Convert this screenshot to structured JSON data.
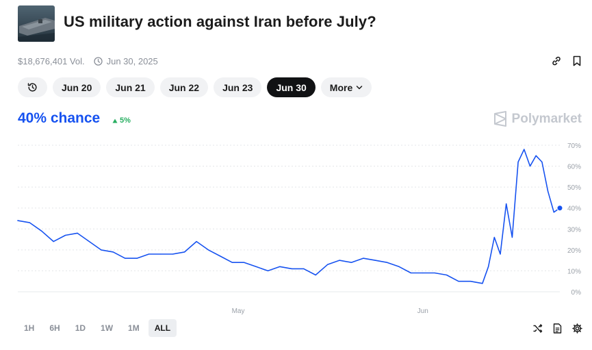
{
  "market": {
    "title": "US military action against Iran before July?",
    "volume": "$18,676,401 Vol.",
    "end_date": "Jun 30, 2025",
    "thumbnail_icon": "aircraft-carrier-image"
  },
  "date_pills": [
    "Jun 20",
    "Jun 21",
    "Jun 22",
    "Jun 23",
    "Jun 30",
    "More"
  ],
  "active_pill": "Jun 30",
  "headline": {
    "chance": "40% chance",
    "change": "5%",
    "change_color": "#27ae60",
    "accent": "#1652f0"
  },
  "brand": "Polymarket",
  "time_ranges": [
    "1H",
    "6H",
    "1D",
    "1W",
    "1M",
    "ALL"
  ],
  "active_range": "ALL",
  "chart_data": {
    "type": "line",
    "title": "",
    "xlabel": "",
    "ylabel": "",
    "ylim": [
      0,
      70
    ],
    "y_ticks": [
      "0%",
      "10%",
      "20%",
      "30%",
      "40%",
      "50%",
      "60%",
      "70%"
    ],
    "x_ticks": [
      "May",
      "Jun"
    ],
    "grid": true,
    "series_color": "#1652f0",
    "x": [
      "2025-03-25",
      "2025-03-27",
      "2025-03-29",
      "2025-03-31",
      "2025-04-02",
      "2025-04-04",
      "2025-04-06",
      "2025-04-08",
      "2025-04-10",
      "2025-04-12",
      "2025-04-14",
      "2025-04-16",
      "2025-04-18",
      "2025-04-20",
      "2025-04-22",
      "2025-04-24",
      "2025-04-26",
      "2025-04-28",
      "2025-04-30",
      "2025-05-02",
      "2025-05-04",
      "2025-05-06",
      "2025-05-08",
      "2025-05-10",
      "2025-05-12",
      "2025-05-14",
      "2025-05-16",
      "2025-05-18",
      "2025-05-20",
      "2025-05-22",
      "2025-05-24",
      "2025-05-26",
      "2025-05-28",
      "2025-05-30",
      "2025-06-01",
      "2025-06-03",
      "2025-06-05",
      "2025-06-07",
      "2025-06-09",
      "2025-06-11",
      "2025-06-12",
      "2025-06-13",
      "2025-06-14",
      "2025-06-15",
      "2025-06-16",
      "2025-06-17",
      "2025-06-18",
      "2025-06-19",
      "2025-06-20",
      "2025-06-21",
      "2025-06-22",
      "2025-06-23",
      "2025-06-24"
    ],
    "values": [
      34,
      33,
      29,
      24,
      27,
      28,
      24,
      20,
      19,
      16,
      16,
      18,
      18,
      18,
      19,
      24,
      20,
      17,
      14,
      14,
      12,
      10,
      12,
      11,
      11,
      8,
      13,
      15,
      14,
      16,
      15,
      14,
      12,
      9,
      9,
      9,
      8,
      5,
      5,
      4,
      12,
      26,
      18,
      42,
      26,
      62,
      68,
      60,
      65,
      62,
      48,
      38,
      40
    ],
    "current_value": 40
  },
  "icons": {
    "link": "link-icon",
    "bookmark": "bookmark-icon",
    "clock": "clock-icon",
    "history": "history-icon",
    "shuffle": "shuffle-icon",
    "document": "document-icon",
    "settings": "gear-icon",
    "delta": "triangle-up-icon"
  }
}
